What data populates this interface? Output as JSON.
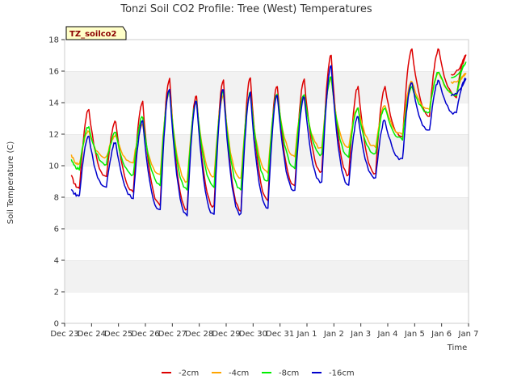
{
  "chart_data": {
    "type": "line",
    "title": "Tonzi Soil CO2 Profile: Tree (West) Temperatures",
    "xlabel": "Time",
    "ylabel": "Soil Temperature (C)",
    "ylim": [
      0,
      18
    ],
    "yticks": [
      0,
      2,
      4,
      6,
      8,
      10,
      12,
      14,
      16,
      18
    ],
    "xlim": [
      0,
      15
    ],
    "xticks": [
      "Dec 23",
      "Dec 24",
      "Dec 25",
      "Dec 26",
      "Dec 27",
      "Dec 28",
      "Dec 29",
      "Dec 30",
      "Dec 31",
      "Jan 1",
      "Jan 2",
      "Jan 3",
      "Jan 4",
      "Jan 5",
      "Jan 6",
      "Jan 7"
    ],
    "badge": "TZ_soilco2",
    "grid": "horizontal bands",
    "legend_position": "bottom-center",
    "series": [
      {
        "name": "-2cm",
        "color": "#dd0000",
        "days": [
          {
            "min": 8.6,
            "max": 13.6
          },
          {
            "min": 9.3,
            "max": 12.8
          },
          {
            "min": 8.4,
            "max": 14.0
          },
          {
            "min": 7.5,
            "max": 15.5
          },
          {
            "min": 7.2,
            "max": 14.5
          },
          {
            "min": 7.4,
            "max": 15.4
          },
          {
            "min": 7.2,
            "max": 15.6
          },
          {
            "min": 7.8,
            "max": 15.1
          },
          {
            "min": 8.7,
            "max": 15.5
          },
          {
            "min": 9.6,
            "max": 17.0
          },
          {
            "min": 9.4,
            "max": 15.0
          },
          {
            "min": 9.5,
            "max": 15.0
          },
          {
            "min": 11.8,
            "max": 17.4
          },
          {
            "min": 13.2,
            "max": 17.4
          },
          {
            "min": 14.4,
            "max": 17.0
          }
        ],
        "start": 9.4
      },
      {
        "name": "-4cm",
        "color": "#ffa500",
        "days": [
          {
            "min": 10.1,
            "max": 12.2
          },
          {
            "min": 10.5,
            "max": 11.9
          },
          {
            "min": 10.2,
            "max": 12.6
          },
          {
            "min": 9.4,
            "max": 14.7
          },
          {
            "min": 9.0,
            "max": 14.0
          },
          {
            "min": 9.3,
            "max": 14.5
          },
          {
            "min": 9.2,
            "max": 14.4
          },
          {
            "min": 9.6,
            "max": 14.4
          },
          {
            "min": 10.6,
            "max": 14.3
          },
          {
            "min": 11.1,
            "max": 15.5
          },
          {
            "min": 11.1,
            "max": 13.7
          },
          {
            "min": 11.2,
            "max": 13.8
          },
          {
            "min": 12.0,
            "max": 15.4
          },
          {
            "min": 13.6,
            "max": 15.9
          },
          {
            "min": 14.5,
            "max": 15.9
          }
        ],
        "start": 10.7
      },
      {
        "name": "-8cm",
        "color": "#00ee00",
        "days": [
          {
            "min": 9.8,
            "max": 12.5
          },
          {
            "min": 10.1,
            "max": 12.1
          },
          {
            "min": 9.4,
            "max": 13.1
          },
          {
            "min": 8.8,
            "max": 14.8
          },
          {
            "min": 8.5,
            "max": 14.1
          },
          {
            "min": 8.7,
            "max": 14.7
          },
          {
            "min": 8.5,
            "max": 14.6
          },
          {
            "min": 9.0,
            "max": 14.6
          },
          {
            "min": 9.9,
            "max": 14.5
          },
          {
            "min": 10.7,
            "max": 15.6
          },
          {
            "min": 10.6,
            "max": 13.6
          },
          {
            "min": 10.7,
            "max": 13.7
          },
          {
            "min": 11.7,
            "max": 15.0
          },
          {
            "min": 13.4,
            "max": 16.0
          },
          {
            "min": 14.5,
            "max": 16.5
          }
        ],
        "start": 10.4
      },
      {
        "name": "-16cm",
        "color": "#0000cc",
        "days": [
          {
            "min": 8.1,
            "max": 11.9
          },
          {
            "min": 8.6,
            "max": 11.5
          },
          {
            "min": 8.0,
            "max": 12.8
          },
          {
            "min": 7.2,
            "max": 14.9
          },
          {
            "min": 6.9,
            "max": 14.1
          },
          {
            "min": 6.9,
            "max": 14.9
          },
          {
            "min": 6.9,
            "max": 14.6
          },
          {
            "min": 7.3,
            "max": 14.5
          },
          {
            "min": 8.4,
            "max": 14.4
          },
          {
            "min": 8.9,
            "max": 16.3
          },
          {
            "min": 8.8,
            "max": 13.1
          },
          {
            "min": 9.2,
            "max": 12.9
          },
          {
            "min": 10.4,
            "max": 15.3
          },
          {
            "min": 12.2,
            "max": 15.4
          },
          {
            "min": 13.3,
            "max": 15.5
          }
        ],
        "start": 8.5
      }
    ]
  }
}
